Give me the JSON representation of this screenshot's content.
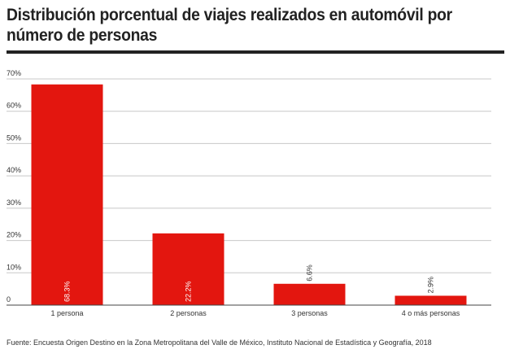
{
  "title": "Distribución porcentual de viajes realizados en automóvil por número de personas",
  "source": "Fuente:  Encuesta Origen Destino en la Zona Metropolitana del Valle de México, Instituto Nacional de Estadística y Geografía, 2018",
  "colors": {
    "bar": "#e3160f",
    "grid": "#c8c8c8",
    "axis": "#444444",
    "text": "#333333",
    "title": "#222222"
  },
  "chart_data": {
    "type": "bar",
    "title": "Distribución porcentual de viajes realizados en automóvil por número de personas",
    "categories": [
      "1 persona",
      "2 personas",
      "3 personas",
      "4 o más personas"
    ],
    "values": [
      68.3,
      22.2,
      6.6,
      2.9
    ],
    "data_labels": [
      "68.3%",
      "22.2%",
      "6.6%",
      "2.9%"
    ],
    "ylim": [
      0,
      70
    ],
    "yticks": [
      0,
      10,
      20,
      30,
      40,
      50,
      60,
      70
    ],
    "ytick_labels": [
      "0",
      "10%",
      "20%",
      "30%",
      "40%",
      "50%",
      "60%",
      "70%"
    ],
    "xlabel": "",
    "ylabel": "",
    "grid": true,
    "legend": "none"
  }
}
